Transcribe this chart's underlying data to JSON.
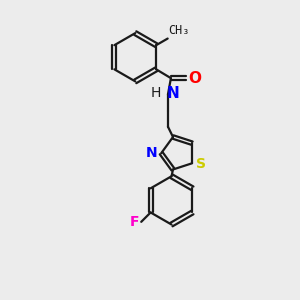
{
  "background_color": "#ececec",
  "bond_color": "#1a1a1a",
  "line_width": 1.6,
  "atom_colors": {
    "O": "#ff0000",
    "N": "#0000ff",
    "S": "#cccc00",
    "F": "#ff00cc",
    "C": "#1a1a1a",
    "H": "#1a1a1a"
  },
  "font_size": 10,
  "fig_size": [
    3.0,
    3.0
  ],
  "dpi": 100
}
